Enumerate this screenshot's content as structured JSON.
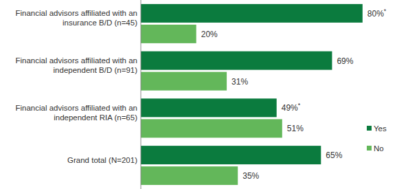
{
  "chart_data": {
    "type": "bar",
    "orientation": "horizontal",
    "categories": [
      "Financial advisors affiliated with an\ninsurance B/D (n=45)",
      "Financial advisors affiliated with an\nindependent B/D (n=91)",
      "Financial advisors affiliated with an\nindependent RIA (n=65)",
      "Grand total (N=201)"
    ],
    "series": [
      {
        "name": "Yes",
        "color": "#0b7b3e",
        "values": [
          80,
          69,
          49,
          65
        ],
        "value_labels": [
          "80%*",
          "69%",
          "49%*",
          "65%"
        ]
      },
      {
        "name": "No",
        "color": "#63b75a",
        "values": [
          20,
          31,
          51,
          35
        ],
        "value_labels": [
          "20%",
          "31%",
          "51%",
          "35%"
        ]
      }
    ],
    "xlim": [
      0,
      85
    ],
    "data_labels": true,
    "tick_labels": "y",
    "legend": "right",
    "grid": false
  }
}
